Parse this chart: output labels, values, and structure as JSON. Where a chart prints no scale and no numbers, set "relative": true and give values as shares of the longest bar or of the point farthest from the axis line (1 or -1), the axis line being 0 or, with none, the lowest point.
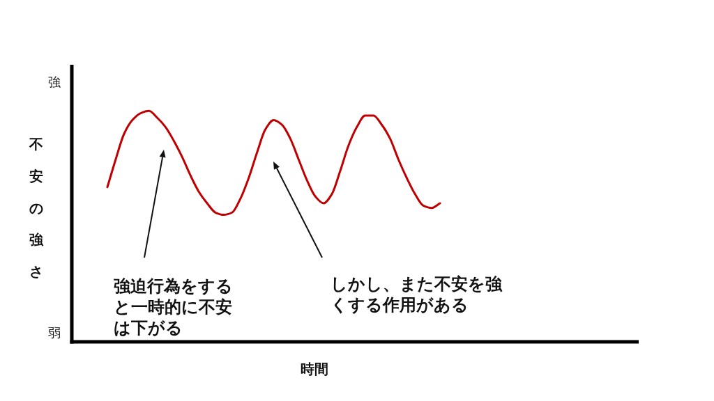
{
  "chart_data": {
    "type": "line",
    "relative": true,
    "xlabel": "時間",
    "ylabel": "不安の強さ",
    "categories": [
      null,
      null,
      null,
      null,
      null,
      null,
      null,
      null,
      null,
      null,
      null,
      null,
      null,
      null,
      null,
      null,
      null,
      null,
      null,
      null,
      null,
      null,
      null,
      null,
      null,
      null,
      null,
      null,
      null,
      null,
      null,
      null,
      null,
      null,
      null,
      null,
      null,
      null,
      null,
      null,
      null
    ],
    "values": [
      0.67,
      0.79,
      0.9,
      0.96,
      0.99,
      1,
      0.97,
      0.93,
      0.87,
      0.8,
      0.72,
      0.65,
      0.6,
      0.56,
      0.55,
      0.56,
      0.62,
      0.71,
      0.82,
      0.92,
      0.96,
      0.94,
      0.88,
      0.79,
      0.7,
      0.63,
      0.6,
      0.64,
      0.74,
      0.85,
      0.93,
      0.98,
      0.98,
      0.94,
      0.88,
      0.79,
      0.71,
      0.64,
      0.59,
      0.58,
      0.6
    ],
    "color": "#c00000",
    "annotations": [
      "強",
      "弱",
      "強迫行為をすると一時的に不安は下がる",
      "しかし、また不安を強くする作用がある"
    ]
  }
}
